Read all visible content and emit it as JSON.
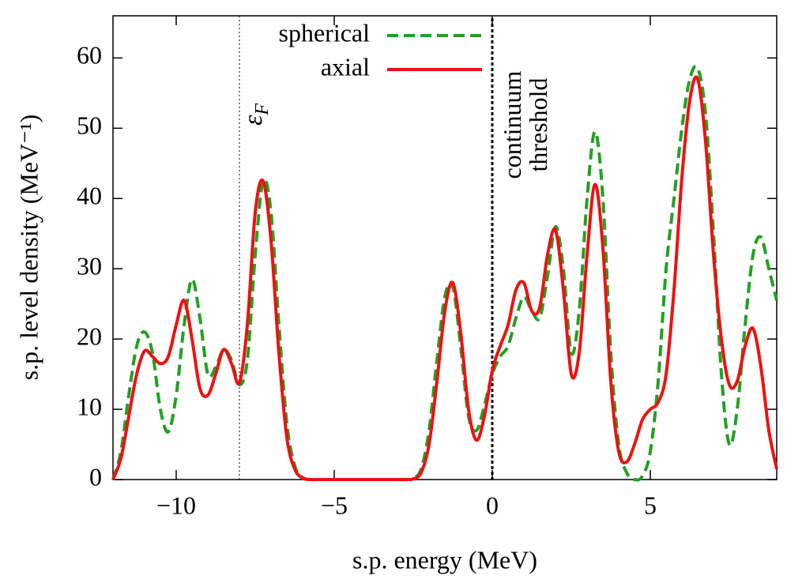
{
  "chart_data": {
    "type": "line",
    "x_label": "s.p. energy (MeV)",
    "y_label": "s.p. level density (MeV⁻¹)",
    "xlim": [
      -12,
      9
    ],
    "ylim": [
      0,
      66
    ],
    "xticks": [
      {
        "value": -10,
        "label": "−10"
      },
      {
        "value": -5,
        "label": "−5"
      },
      0,
      5
    ],
    "yticks": [
      0,
      10,
      20,
      30,
      40,
      50,
      60
    ],
    "legend": "top",
    "vlines": [
      {
        "x": -8,
        "style": "thin"
      },
      {
        "x": 0,
        "style": "thick"
      }
    ],
    "fermi_label": {
      "symbol": "ε",
      "subscript": "F"
    },
    "threshold_label": [
      "continuum",
      "threshold"
    ],
    "x": [
      -12,
      -11.75,
      -11.5,
      -11.25,
      -11,
      -10.75,
      -10.5,
      -10.25,
      -10,
      -9.75,
      -9.5,
      -9.25,
      -9,
      -8.75,
      -8.5,
      -8.25,
      -8,
      -7.75,
      -7.5,
      -7.25,
      -7,
      -6.75,
      -6.5,
      -6.25,
      -6,
      -5.75,
      -5.5,
      -5.25,
      -5,
      -4.75,
      -4.5,
      -4.25,
      -4,
      -3.75,
      -3.5,
      -3.25,
      -3,
      -2.75,
      -2.5,
      -2.25,
      -2,
      -1.75,
      -1.5,
      -1.25,
      -1,
      -0.75,
      -0.5,
      -0.25,
      0,
      0.25,
      0.5,
      0.75,
      1,
      1.25,
      1.5,
      1.75,
      2,
      2.25,
      2.5,
      2.75,
      3,
      3.25,
      3.5,
      3.75,
      4,
      4.25,
      4.5,
      4.75,
      5,
      5.25,
      5.5,
      5.75,
      6,
      6.25,
      6.5,
      6.75,
      7,
      7.25,
      7.5,
      7.75,
      8,
      8.25,
      8.5,
      8.75,
      9
    ],
    "series": [
      {
        "name": "spherical",
        "color": "#22a022",
        "dash": true,
        "values": [
          0,
          4,
          12,
          19,
          21,
          18,
          10,
          6.8,
          12,
          22,
          28.5,
          23,
          15,
          16,
          18.5,
          17,
          13.5,
          17,
          32,
          42.5,
          38,
          22,
          8,
          2,
          0.3,
          0,
          0,
          0,
          0,
          0,
          0,
          0,
          0,
          0,
          0,
          0,
          0,
          0,
          0.2,
          1.5,
          7,
          17,
          26,
          27.5,
          19,
          9,
          7,
          10.5,
          15,
          17.5,
          19,
          23,
          26,
          24,
          23,
          29,
          36,
          30,
          18,
          24,
          40,
          49.5,
          40,
          18,
          5,
          1,
          0,
          0.5,
          4,
          14,
          30,
          40,
          50,
          57,
          58.5,
          52,
          35,
          15,
          5,
          10,
          22,
          32,
          34.5,
          30,
          25.5
        ]
      },
      {
        "name": "axial",
        "color": "#ee1111",
        "dash": false,
        "values": [
          0,
          3,
          9,
          15,
          18.3,
          17.5,
          16.5,
          17.5,
          22,
          25.5,
          20,
          13,
          12,
          15,
          18.5,
          16.5,
          13.8,
          22,
          38,
          42.5,
          34,
          18,
          6,
          1.5,
          0.2,
          0,
          0,
          0,
          0,
          0,
          0,
          0,
          0,
          0,
          0,
          0,
          0,
          0,
          0.1,
          1,
          5,
          14,
          24,
          28,
          21,
          10,
          5.6,
          9,
          15.5,
          19,
          22,
          27,
          28,
          24,
          24.5,
          32,
          35.5,
          27,
          15,
          18,
          32,
          42,
          33,
          14,
          4,
          2.5,
          5,
          8.5,
          10,
          11,
          15,
          27,
          43,
          54,
          57,
          48,
          32,
          20,
          13.5,
          14,
          19,
          21.5,
          16,
          7,
          1.5
        ]
      }
    ]
  }
}
